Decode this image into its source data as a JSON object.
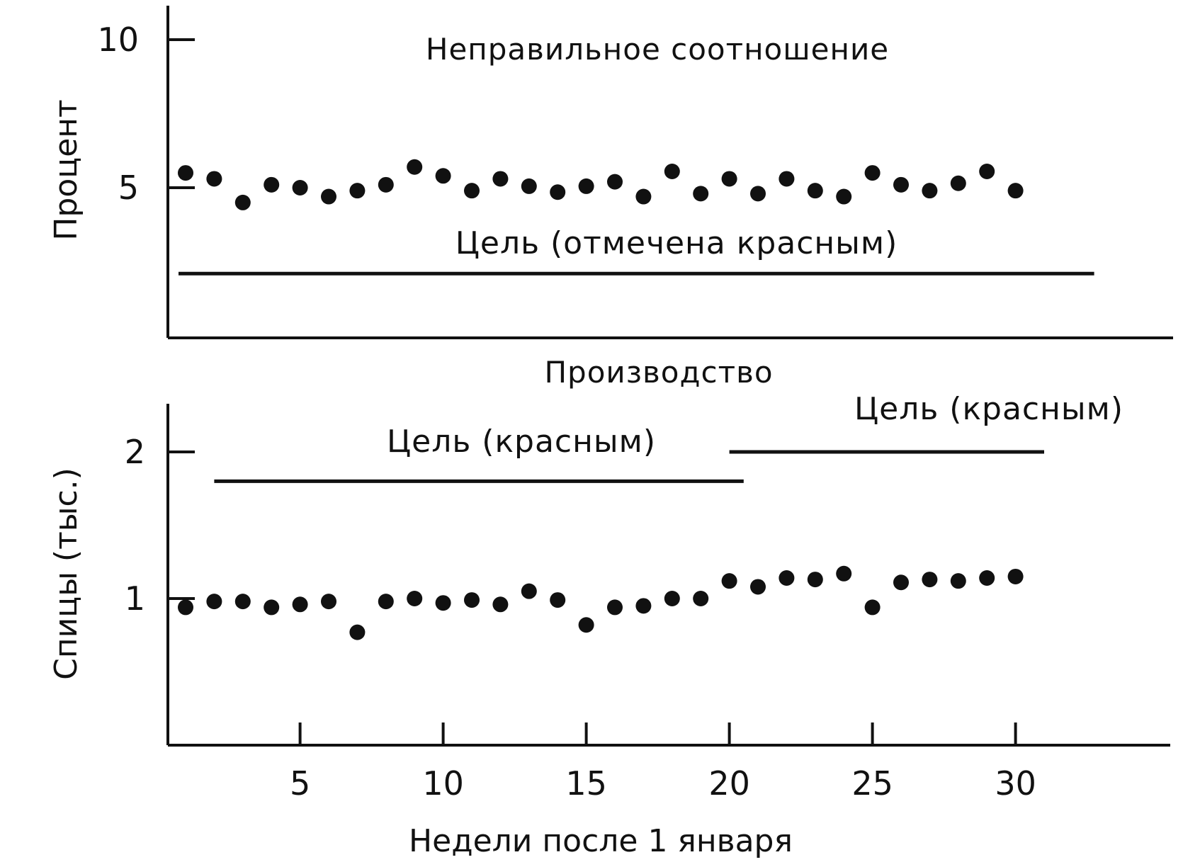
{
  "chart_data": [
    {
      "type": "scatter",
      "title": "Неправильное соотношение",
      "ylabel": "Процент",
      "ylim": [
        0,
        10
      ],
      "yticks": [
        10,
        5
      ],
      "goal": {
        "label": "Цель (отмечена красным)",
        "value": 2.1,
        "x_start": 1.0,
        "x_end": 32.5
      },
      "x": [
        1,
        2,
        3,
        4,
        5,
        6,
        7,
        8,
        9,
        10,
        11,
        12,
        13,
        14,
        15,
        16,
        17,
        18,
        19,
        20,
        21,
        22,
        23,
        24,
        25,
        26,
        27,
        28,
        29,
        30
      ],
      "values": [
        5.5,
        5.3,
        4.5,
        5.1,
        5.0,
        4.7,
        4.9,
        5.1,
        5.7,
        5.4,
        4.9,
        5.3,
        5.05,
        4.85,
        5.05,
        5.2,
        4.7,
        5.55,
        4.8,
        5.3,
        4.8,
        5.3,
        4.9,
        4.7,
        5.5,
        5.1,
        4.9,
        5.15,
        5.55,
        4.9
      ]
    },
    {
      "type": "scatter",
      "title": "Производство",
      "ylabel": "Спицы (тыс.)",
      "xlabel": "Недели после 1 января",
      "ylim": [
        0,
        2.3
      ],
      "yticks": [
        2,
        1
      ],
      "xticks": [
        5,
        10,
        15,
        20,
        25,
        30
      ],
      "goals": [
        {
          "label": "Цель (красным)",
          "value": 1.8,
          "x_start": 2.0,
          "x_end": 20.5
        },
        {
          "label": "Цель (красным)",
          "value": 2.0,
          "x_start": 20.0,
          "x_end": 31.0
        }
      ],
      "x": [
        1,
        2,
        3,
        4,
        5,
        6,
        7,
        8,
        9,
        10,
        11,
        12,
        13,
        14,
        15,
        16,
        17,
        18,
        19,
        20,
        21,
        22,
        23,
        24,
        25,
        26,
        27,
        28,
        29,
        30
      ],
      "values": [
        0.94,
        0.98,
        0.98,
        0.94,
        0.96,
        0.98,
        0.77,
        0.98,
        1.0,
        0.97,
        0.99,
        0.96,
        1.05,
        0.99,
        0.82,
        0.94,
        0.95,
        1.0,
        1.0,
        1.12,
        1.08,
        1.14,
        1.13,
        1.17,
        0.94,
        1.11,
        1.13,
        1.12,
        1.14,
        1.15
      ]
    }
  ]
}
